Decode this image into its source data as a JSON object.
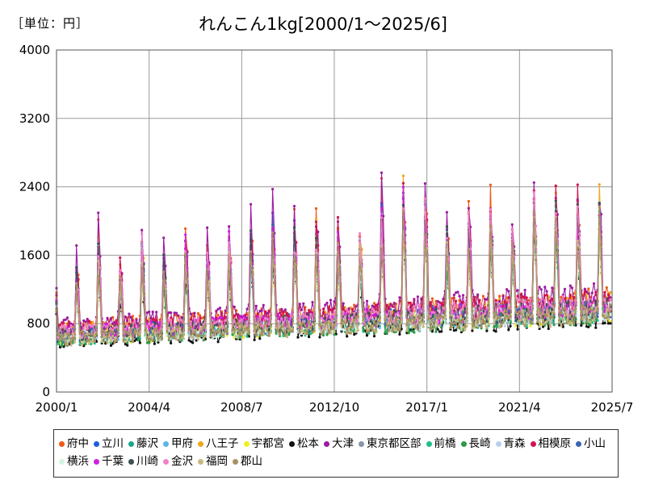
{
  "unit_label": "［単位：円］",
  "chart_data": {
    "type": "line",
    "title": "れんこん1kg[2000/1～2025/6]",
    "xlabel": "",
    "ylabel": "",
    "ylim": [
      0,
      4000
    ],
    "yticks": [
      0,
      800,
      1600,
      2400,
      3200,
      4000
    ],
    "xlim": [
      2000.0,
      2025.5
    ],
    "xticks": [
      {
        "value": 2000.0,
        "label": "2000/1"
      },
      {
        "value": 2004.25,
        "label": "2004/4"
      },
      {
        "value": 2008.5,
        "label": "2008/7"
      },
      {
        "value": 2012.75,
        "label": "2012/10"
      },
      {
        "value": 2017.0,
        "label": "2017/1"
      },
      {
        "value": 2021.25,
        "label": "2021/4"
      },
      {
        "value": 2025.5,
        "label": "2025/7"
      }
    ],
    "grid": true,
    "legend_position": "bottom",
    "series": [
      {
        "name": "府中",
        "color": "#f05a14",
        "scale": 1.15
      },
      {
        "name": "立川",
        "color": "#1f5ed8",
        "scale": 1.05
      },
      {
        "name": "藤沢",
        "color": "#1aa88a",
        "scale": 1.0
      },
      {
        "name": "甲府",
        "color": "#5ab4e8",
        "scale": 0.98
      },
      {
        "name": "八王子",
        "color": "#f0a818",
        "scale": 1.1
      },
      {
        "name": "宇都宮",
        "color": "#f0f020",
        "scale": 0.96
      },
      {
        "name": "松本",
        "color": "#111111",
        "scale": 0.9
      },
      {
        "name": "大津",
        "color": "#9c1aa0",
        "scale": 1.2
      },
      {
        "name": "東京都区部",
        "color": "#8496a8",
        "scale": 1.02
      },
      {
        "name": "前橋",
        "color": "#20c08a",
        "scale": 0.95
      },
      {
        "name": "長崎",
        "color": "#2e9a48",
        "scale": 0.93
      },
      {
        "name": "青森",
        "color": "#b8d0ec",
        "scale": 0.97
      },
      {
        "name": "相模原",
        "color": "#d01450",
        "scale": 1.12
      },
      {
        "name": "小山",
        "color": "#3a64b4",
        "scale": 1.0
      },
      {
        "name": "横浜",
        "color": "#d4f4e2",
        "scale": 0.99
      },
      {
        "name": "千葉",
        "color": "#d020e0",
        "scale": 1.06
      },
      {
        "name": "川崎",
        "color": "#3c5050",
        "scale": 1.03
      },
      {
        "name": "金沢",
        "color": "#f080c8",
        "scale": 1.08
      },
      {
        "name": "福岡",
        "color": "#c8b880",
        "scale": 0.94
      },
      {
        "name": "郡山",
        "color": "#a89060",
        "scale": 0.96
      }
    ]
  }
}
